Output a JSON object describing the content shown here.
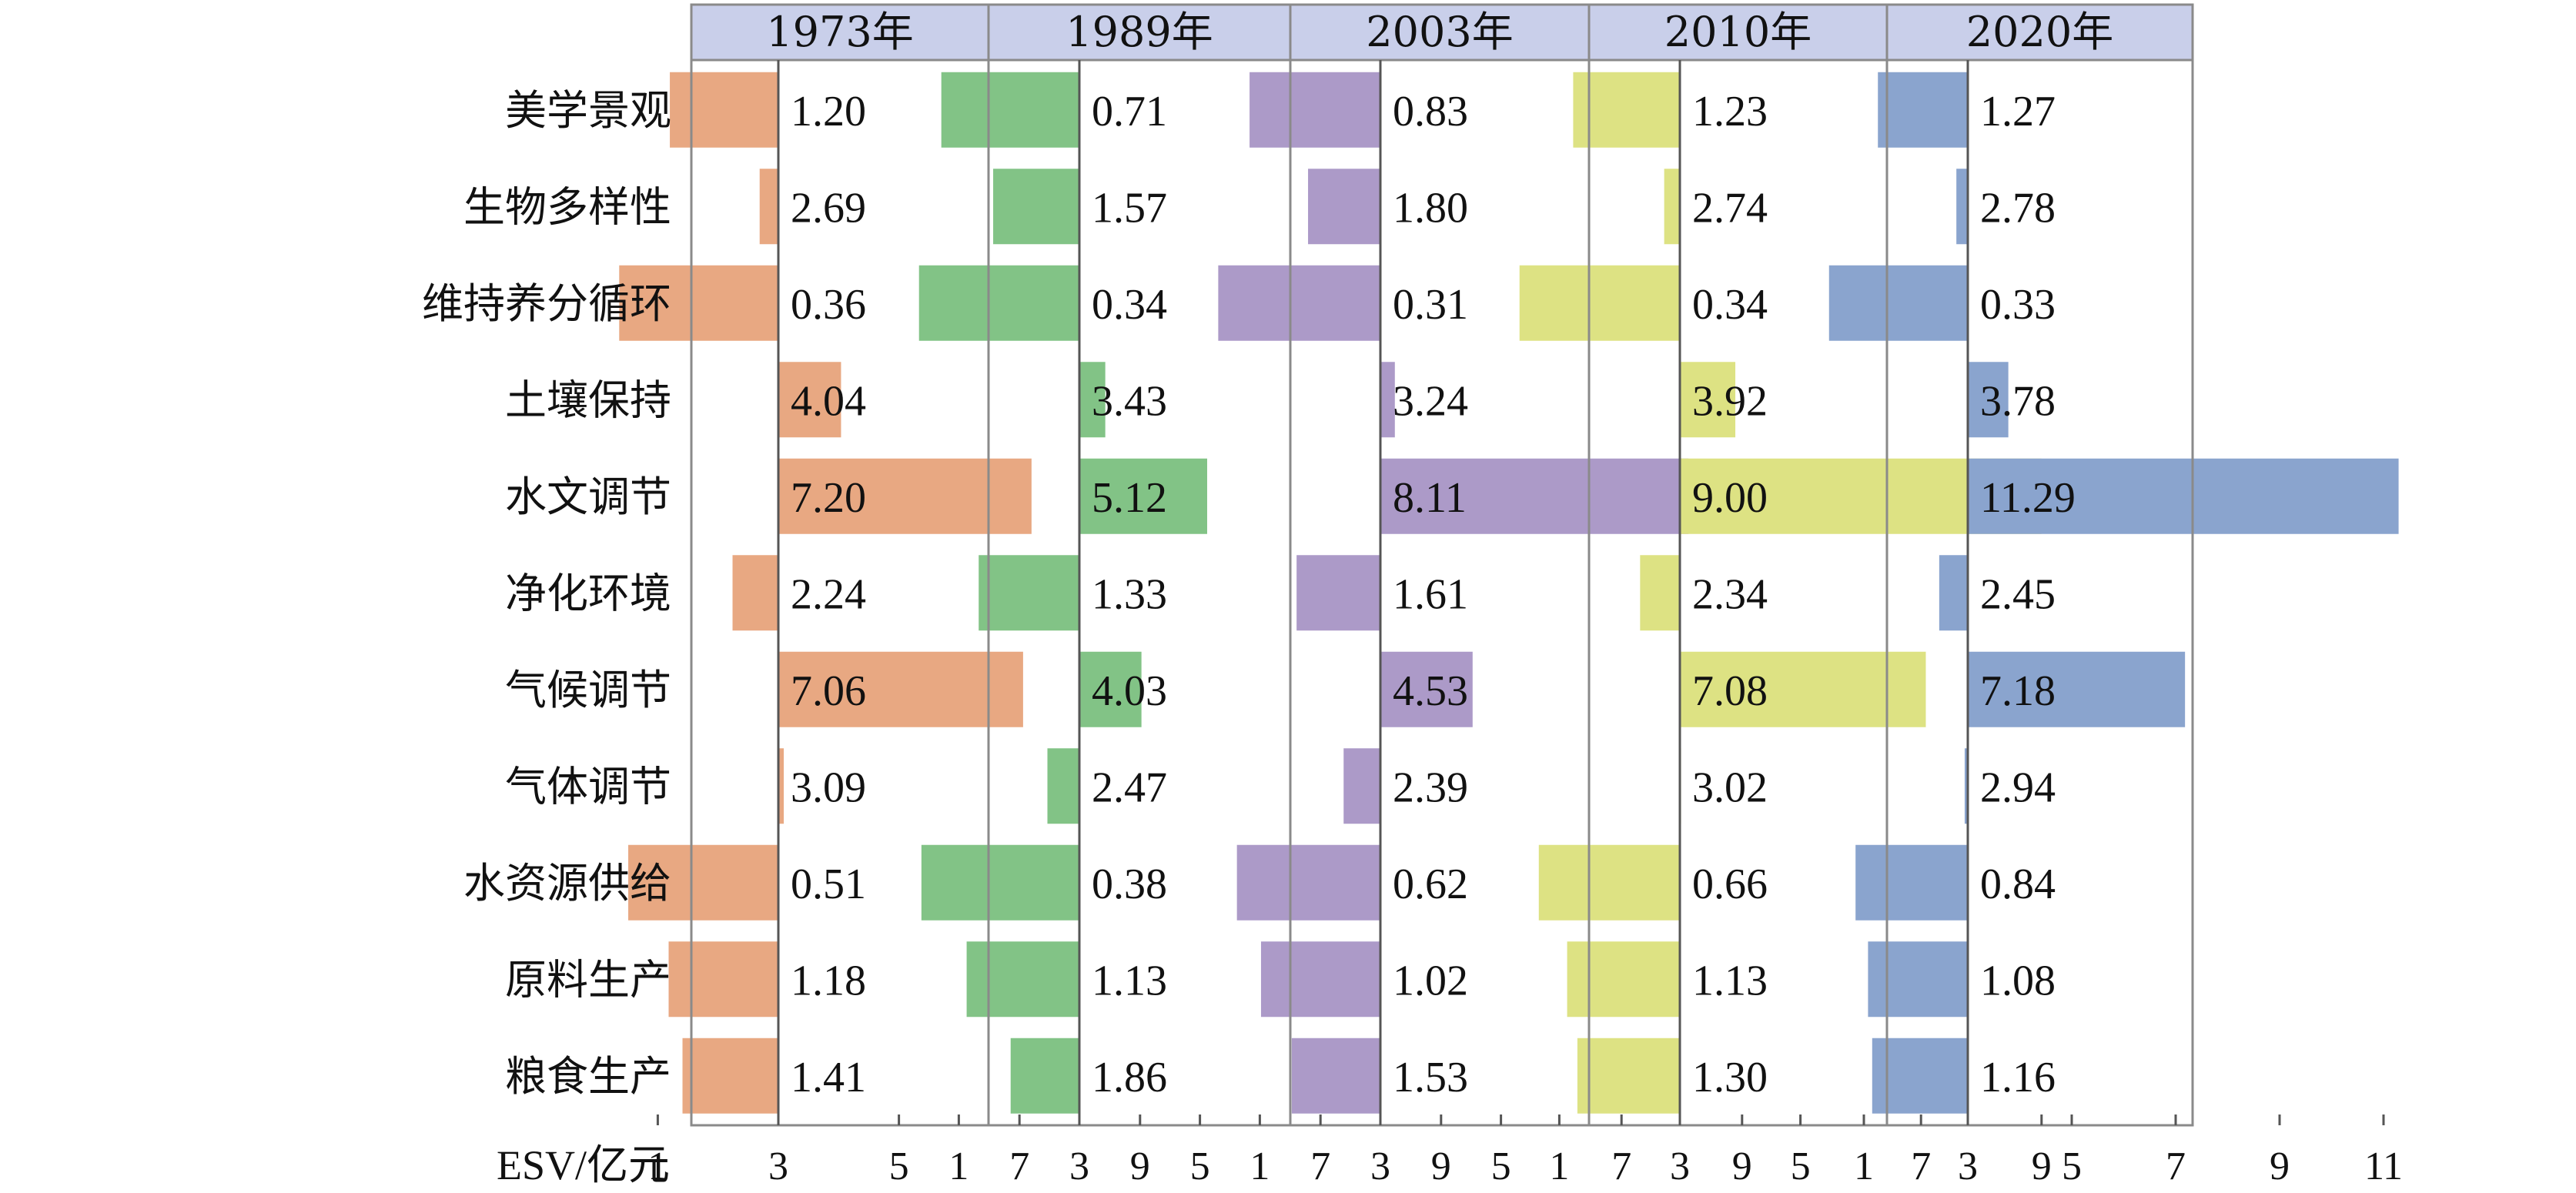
{
  "chart_data": {
    "type": "bar",
    "orientation": "horizontal",
    "xlabel": "ESV/亿元",
    "categories": [
      "美学景观",
      "生物多样性",
      "维持养分循环",
      "土壤保持",
      "水文调节",
      "净化环境",
      "气候调节",
      "气体调节",
      "水资源供给",
      "原料生产",
      "粮食生产"
    ],
    "baseline": 3,
    "series": [
      {
        "name": "1973年",
        "color": "#E8A882",
        "values": [
          1.2,
          2.69,
          0.36,
          4.04,
          7.2,
          2.24,
          7.06,
          3.09,
          0.51,
          1.18,
          1.41
        ],
        "labels": [
          "1.20",
          "2.69",
          "0.36",
          "4.04",
          "7.20",
          "2.24",
          "7.06",
          "3.09",
          "0.51",
          "1.18",
          "1.41"
        ],
        "ticks": [
          1,
          3,
          5,
          7,
          9
        ],
        "xlim": [
          0,
          10
        ]
      },
      {
        "name": "1989年",
        "color": "#82C386",
        "values": [
          0.71,
          1.57,
          0.34,
          3.43,
          5.12,
          1.33,
          4.03,
          2.47,
          0.38,
          1.13,
          1.86
        ],
        "labels": [
          "0.71",
          "1.57",
          "0.34",
          "3.43",
          "5.12",
          "1.33",
          "4.03",
          "2.47",
          "0.38",
          "1.13",
          "1.86"
        ],
        "ticks": [
          1,
          3,
          5,
          7,
          9
        ],
        "xlim": [
          0,
          10
        ]
      },
      {
        "name": "2003年",
        "color": "#AC9AC8",
        "values": [
          0.83,
          1.8,
          0.31,
          3.24,
          8.11,
          1.61,
          4.53,
          2.39,
          0.62,
          1.02,
          1.53
        ],
        "labels": [
          "0.83",
          "1.80",
          "0.31",
          "3.24",
          "8.11",
          "1.61",
          "4.53",
          "2.39",
          "0.62",
          "1.02",
          "1.53"
        ],
        "ticks": [
          1,
          3,
          5,
          7,
          9
        ],
        "xlim": [
          0,
          10
        ]
      },
      {
        "name": "2010年",
        "color": "#DDE283",
        "values": [
          1.23,
          2.74,
          0.34,
          3.92,
          9.0,
          2.34,
          7.08,
          3.02,
          0.66,
          1.13,
          1.3
        ],
        "labels": [
          "1.23",
          "2.74",
          "0.34",
          "3.92",
          "9.00",
          "2.34",
          "7.08",
          "3.02",
          "0.66",
          "1.13",
          "1.30"
        ],
        "ticks": [
          1,
          3,
          5,
          7,
          9
        ],
        "xlim": [
          0,
          10
        ]
      },
      {
        "name": "2020年",
        "color": "#8AA4CE",
        "values": [
          1.27,
          2.78,
          0.33,
          3.78,
          11.29,
          2.45,
          7.18,
          2.94,
          0.84,
          1.08,
          1.16
        ],
        "labels": [
          "1.27",
          "2.78",
          "0.33",
          "3.78",
          "11.29",
          "2.45",
          "7.18",
          "2.94",
          "0.84",
          "1.08",
          "1.16"
        ],
        "ticks": [
          1,
          3,
          5,
          7,
          9,
          11
        ],
        "xlim": [
          0,
          12
        ]
      }
    ],
    "header_color": "#C9CFEA"
  }
}
